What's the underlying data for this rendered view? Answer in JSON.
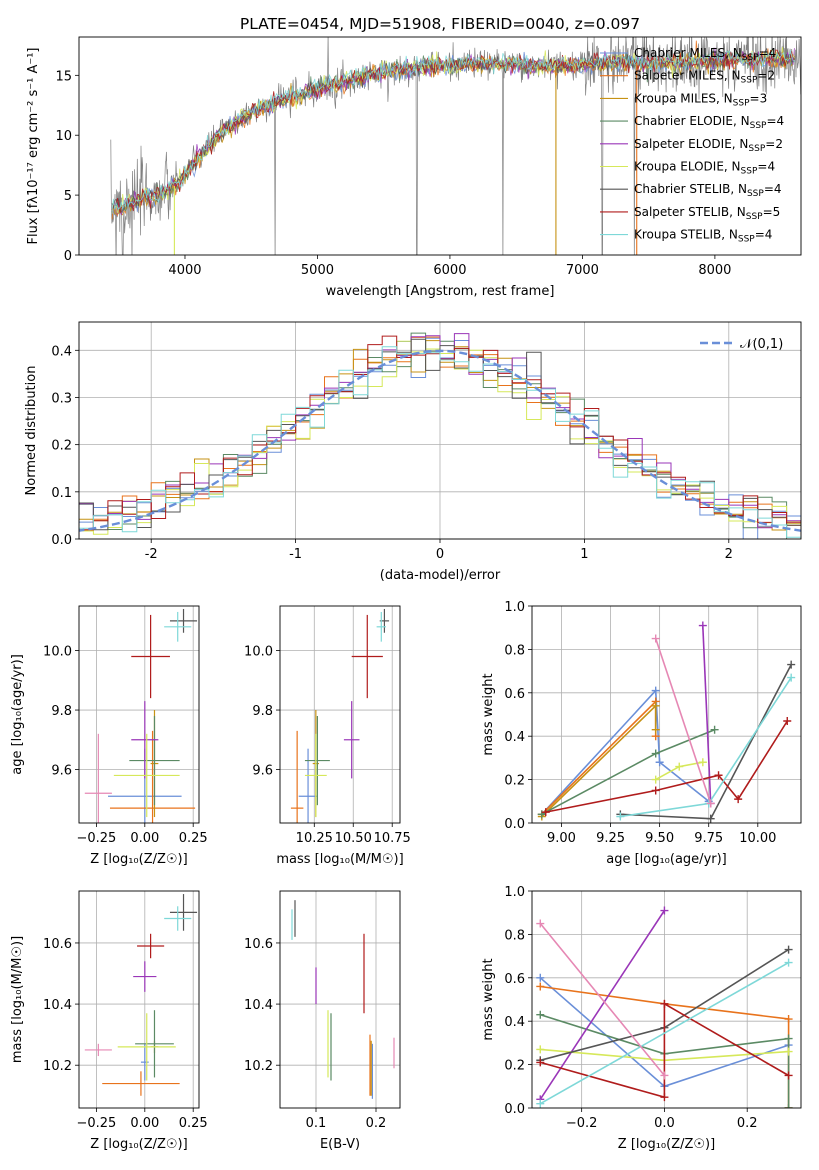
{
  "chart_data": [
    {
      "type": "line",
      "panel": "spectrum",
      "title": "PLATE=0454, MJD=51908, FIBERID=0040, z=0.097",
      "xlabel": "wavelength [Angstrom, rest frame]",
      "ylabel": "Flux [fλ10⁻¹⁷ erg cm⁻² s⁻¹ A⁻¹]",
      "xlim": [
        3200,
        8650
      ],
      "ylim": [
        0,
        18.2
      ],
      "xticks": [
        4000,
        5000,
        6000,
        7000,
        8000
      ],
      "yticks": [
        0,
        5,
        10,
        15
      ],
      "grid": false,
      "legend_position": "right",
      "series": [
        {
          "name": "Chabrier MILES, N",
          "sub": "SSP",
          "tail": "=4",
          "color": "#6a8fd8"
        },
        {
          "name": "Salpeter MILES, N",
          "sub": "SSP",
          "tail": "=2",
          "color": "#e8731c"
        },
        {
          "name": "Kroupa MILES, N",
          "sub": "SSP",
          "tail": "=3",
          "color": "#c69214"
        },
        {
          "name": "Chabrier ELODIE, N",
          "sub": "SSP",
          "tail": "=4",
          "color": "#5b8a64"
        },
        {
          "name": "Salpeter ELODIE, N",
          "sub": "SSP",
          "tail": "=2",
          "color": "#9a36b8"
        },
        {
          "name": "Kroupa ELODIE, N",
          "sub": "SSP",
          "tail": "=4",
          "color": "#d6e85a"
        },
        {
          "name": "Chabrier STELIB, N",
          "sub": "SSP",
          "tail": "=4",
          "color": "#555555"
        },
        {
          "name": "Salpeter STELIB, N",
          "sub": "SSP",
          "tail": "=5",
          "color": "#b01c1c"
        },
        {
          "name": "Kroupa STELIB, N",
          "sub": "SSP",
          "tail": "=4",
          "color": "#7ed8d8"
        }
      ],
      "continuum": {
        "x": [
          3450,
          3550,
          3700,
          3850,
          3950,
          4100,
          4300,
          4500,
          4700,
          4900,
          5100,
          5300,
          5500,
          5700,
          5900,
          6100,
          6300,
          6500,
          6700,
          6900,
          7100,
          7300,
          7500,
          7700,
          7900,
          8100,
          8300,
          8500,
          8650
        ],
        "y": [
          3.8,
          4.2,
          4.9,
          5.2,
          6.0,
          8.2,
          10.4,
          11.9,
          12.8,
          13.5,
          14.2,
          14.8,
          15.3,
          15.6,
          15.8,
          15.9,
          16.0,
          15.9,
          15.8,
          15.8,
          16.0,
          16.1,
          16.0,
          16.0,
          16.2,
          16.3,
          16.4,
          16.4,
          16.3
        ]
      },
      "observed_spikes": [
        3480,
        3530,
        3600,
        4680,
        5080,
        5750,
        6400,
        7150,
        7390
      ],
      "model_dips": [
        3920,
        6800,
        7410
      ]
    },
    {
      "type": "histogram",
      "panel": "residuals",
      "xlabel": "(data-model)/error",
      "ylabel": "Normed distribution",
      "xlim": [
        -2.5,
        2.5
      ],
      "ylim": [
        0,
        0.46
      ],
      "xticks": [
        -2,
        -1,
        0,
        1,
        2
      ],
      "yticks": [
        0.0,
        0.1,
        0.2,
        0.3,
        0.4
      ],
      "grid": true,
      "legend_position": "top-right",
      "reference_curve": {
        "label": "𝒩(0,1)",
        "mean": 0,
        "sigma": 1,
        "color": "#6a8fd8",
        "style": "dashed"
      },
      "bin_width": 0.1
    },
    {
      "type": "scatter",
      "panel": "Z-age",
      "xlabel": "Z [log₁₀(Z/Z☉)]",
      "ylabel": "age  [log₁₀(age/yr)]",
      "xlim": [
        -0.34,
        0.28
      ],
      "ylim": [
        9.42,
        10.15
      ],
      "xticks": [
        -0.25,
        0.0,
        0.25
      ],
      "xticklabels": [
        "−0.25",
        "0.00",
        "0.25"
      ],
      "yticks": [
        9.6,
        9.8,
        10.0
      ],
      "grid": true,
      "points": [
        {
          "x": 0.0,
          "y": 9.51,
          "xerr": 0.19,
          "yerr": 0.16,
          "color": "#6a8fd8"
        },
        {
          "x": 0.04,
          "y": 9.47,
          "xerr": 0.22,
          "yerr": 0.26,
          "color": "#e8731c"
        },
        {
          "x": 0.05,
          "y": 9.62,
          "xerr": 0.02,
          "yerr": 0.18,
          "color": "#c69214"
        },
        {
          "x": 0.05,
          "y": 9.63,
          "xerr": 0.13,
          "yerr": 0.15,
          "color": "#5b8a64"
        },
        {
          "x": 0.0,
          "y": 9.7,
          "xerr": 0.07,
          "yerr": 0.13,
          "color": "#9a36b8"
        },
        {
          "x": 0.01,
          "y": 9.58,
          "xerr": 0.17,
          "yerr": 0.14,
          "color": "#d6e85a"
        },
        {
          "x": 0.2,
          "y": 10.1,
          "xerr": 0.07,
          "yerr": 0.04,
          "color": "#555555"
        },
        {
          "x": 0.03,
          "y": 9.98,
          "xerr": 0.1,
          "yerr": 0.14,
          "color": "#b01c1c"
        },
        {
          "x": 0.17,
          "y": 10.08,
          "xerr": 0.07,
          "yerr": 0.05,
          "color": "#7ed8d8"
        },
        {
          "x": -0.24,
          "y": 9.52,
          "xerr": 0.07,
          "yerr": 0.2,
          "color": "#e688b4"
        }
      ]
    },
    {
      "type": "scatter",
      "panel": "mass-age",
      "xlabel": "mass [log₁₀(M/M☉)]",
      "xlim": [
        10.03,
        10.8
      ],
      "ylim": [
        9.42,
        10.15
      ],
      "xticks": [
        10.25,
        10.5,
        10.75
      ],
      "xticklabels": [
        "10.25",
        "10.50",
        "10.75"
      ],
      "yticks": [
        9.6,
        9.8,
        10.0
      ],
      "grid": true,
      "points": [
        {
          "x": 10.21,
          "y": 9.51,
          "xerr": 0.06,
          "yerr": 0.16,
          "color": "#6a8fd8"
        },
        {
          "x": 10.14,
          "y": 9.47,
          "xerr": 0.04,
          "yerr": 0.26,
          "color": "#e8731c"
        },
        {
          "x": 10.26,
          "y": 9.62,
          "xerr": 0.02,
          "yerr": 0.18,
          "color": "#c69214"
        },
        {
          "x": 10.27,
          "y": 9.63,
          "xerr": 0.08,
          "yerr": 0.15,
          "color": "#5b8a64"
        },
        {
          "x": 10.49,
          "y": 9.7,
          "xerr": 0.05,
          "yerr": 0.13,
          "color": "#9a36b8"
        },
        {
          "x": 10.26,
          "y": 9.58,
          "xerr": 0.07,
          "yerr": 0.14,
          "color": "#d6e85a"
        },
        {
          "x": 10.7,
          "y": 10.1,
          "xerr": 0.03,
          "yerr": 0.04,
          "color": "#555555"
        },
        {
          "x": 10.59,
          "y": 9.98,
          "xerr": 0.1,
          "yerr": 0.14,
          "color": "#b01c1c"
        },
        {
          "x": 10.68,
          "y": 10.08,
          "xerr": 0.03,
          "yerr": 0.05,
          "color": "#7ed8d8"
        }
      ]
    },
    {
      "type": "line",
      "panel": "age-weight",
      "xlabel": "age  [log₁₀(age/yr)]",
      "ylabel": "mass weight",
      "xlim": [
        8.85,
        10.22
      ],
      "ylim": [
        0,
        1.0
      ],
      "xticks": [
        9.0,
        9.25,
        9.5,
        9.75,
        10.0
      ],
      "xticklabels": [
        "9.00",
        "9.25",
        "9.50",
        "9.75",
        "10.00"
      ],
      "yticks": [
        0.0,
        0.2,
        0.4,
        0.6,
        0.8,
        1.0
      ],
      "grid": true,
      "series": [
        {
          "color": "#6a8fd8",
          "x": [
            8.9,
            9.48,
            9.5,
            9.75
          ],
          "y": [
            0.04,
            0.61,
            0.28,
            0.1
          ]
        },
        {
          "color": "#e8731c",
          "x": [
            8.9,
            9.48,
            9.48
          ],
          "y": [
            0.04,
            0.56,
            0.4
          ]
        },
        {
          "color": "#c69214",
          "x": [
            8.9,
            9.48,
            9.48
          ],
          "y": [
            0.03,
            0.54,
            0.43
          ]
        },
        {
          "color": "#5b8a64",
          "x": [
            8.9,
            9.48,
            9.78
          ],
          "y": [
            0.04,
            0.32,
            0.43
          ]
        },
        {
          "color": "#9a36b8",
          "x": [
            9.72,
            9.76
          ],
          "y": [
            0.91,
            0.09
          ]
        },
        {
          "color": "#d6e85a",
          "x": [
            9.48,
            9.6,
            9.72
          ],
          "y": [
            0.2,
            0.26,
            0.28
          ]
        },
        {
          "color": "#555555",
          "x": [
            9.3,
            9.76,
            10.17
          ],
          "y": [
            0.04,
            0.02,
            0.73
          ]
        },
        {
          "color": "#b01c1c",
          "x": [
            8.92,
            9.48,
            9.8,
            9.9,
            10.15
          ],
          "y": [
            0.05,
            0.15,
            0.22,
            0.11,
            0.47
          ]
        },
        {
          "color": "#7ed8d8",
          "x": [
            9.3,
            9.75,
            10.17
          ],
          "y": [
            0.03,
            0.09,
            0.67
          ]
        },
        {
          "color": "#e688b4",
          "x": [
            9.48,
            9.76
          ],
          "y": [
            0.85,
            0.09
          ]
        }
      ]
    },
    {
      "type": "scatter",
      "panel": "Z-mass",
      "xlabel": "Z [log₁₀(Z/Z☉)]",
      "ylabel": "mass [log₁₀(M/M☉)]",
      "xlim": [
        -0.34,
        0.28
      ],
      "ylim": [
        10.06,
        10.77
      ],
      "xticks": [
        -0.25,
        0.0,
        0.25
      ],
      "xticklabels": [
        "−0.25",
        "0.00",
        "0.25"
      ],
      "yticks": [
        10.2,
        10.4,
        10.6
      ],
      "grid": true,
      "points": [
        {
          "x": 0.0,
          "y": 10.21,
          "xerr": 0.02,
          "yerr": 0.06,
          "color": "#6a8fd8"
        },
        {
          "x": -0.02,
          "y": 10.14,
          "xerr": 0.2,
          "yerr": 0.04,
          "color": "#e8731c"
        },
        {
          "x": 0.05,
          "y": 10.26,
          "xerr": 0.02,
          "yerr": 0.02,
          "color": "#c69214"
        },
        {
          "x": 0.05,
          "y": 10.27,
          "xerr": 0.1,
          "yerr": 0.11,
          "color": "#5b8a64"
        },
        {
          "x": 0.0,
          "y": 10.49,
          "xerr": 0.06,
          "yerr": 0.05,
          "color": "#9a36b8"
        },
        {
          "x": 0.01,
          "y": 10.26,
          "xerr": 0.15,
          "yerr": 0.11,
          "color": "#d6e85a"
        },
        {
          "x": 0.2,
          "y": 10.7,
          "xerr": 0.07,
          "yerr": 0.06,
          "color": "#555555"
        },
        {
          "x": 0.03,
          "y": 10.59,
          "xerr": 0.07,
          "yerr": 0.04,
          "color": "#b01c1c"
        },
        {
          "x": 0.17,
          "y": 10.68,
          "xerr": 0.07,
          "yerr": 0.04,
          "color": "#7ed8d8"
        },
        {
          "x": -0.24,
          "y": 10.25,
          "xerr": 0.07,
          "yerr": 0.02,
          "color": "#e688b4"
        }
      ]
    },
    {
      "type": "scatter",
      "panel": "EBV-mass",
      "xlabel": "E(B-V)",
      "xlim": [
        0.04,
        0.24
      ],
      "ylim": [
        10.06,
        10.77
      ],
      "xticks": [
        0.1,
        0.2
      ],
      "xticklabels": [
        "0.1",
        "0.2"
      ],
      "yticks": [
        10.2,
        10.4,
        10.6
      ],
      "grid": true,
      "points": [
        {
          "x": 0.194,
          "y": 10.18,
          "yerr": 0.09,
          "color": "#6a8fd8"
        },
        {
          "x": 0.19,
          "y": 10.2,
          "yerr": 0.1,
          "color": "#e8731c"
        },
        {
          "x": 0.192,
          "y": 10.19,
          "yerr": 0.09,
          "color": "#c69214"
        },
        {
          "x": 0.125,
          "y": 10.26,
          "yerr": 0.11,
          "color": "#5b8a64"
        },
        {
          "x": 0.1,
          "y": 10.46,
          "yerr": 0.06,
          "color": "#9a36b8"
        },
        {
          "x": 0.12,
          "y": 10.27,
          "yerr": 0.11,
          "color": "#d6e85a"
        },
        {
          "x": 0.065,
          "y": 10.68,
          "yerr": 0.06,
          "color": "#555555"
        },
        {
          "x": 0.18,
          "y": 10.5,
          "yerr": 0.13,
          "color": "#b01c1c"
        },
        {
          "x": 0.06,
          "y": 10.66,
          "yerr": 0.05,
          "color": "#7ed8d8"
        },
        {
          "x": 0.23,
          "y": 10.24,
          "yerr": 0.05,
          "color": "#e688b4"
        }
      ]
    },
    {
      "type": "line",
      "panel": "Z-weight",
      "xlabel": "Z [log₁₀(Z/Z☉)]",
      "ylabel": "mass weight",
      "xlim": [
        -0.32,
        0.33
      ],
      "ylim": [
        0,
        1.0
      ],
      "xticks": [
        -0.2,
        0.0,
        0.2
      ],
      "xticklabels": [
        "−0.2",
        "0.0",
        "0.2"
      ],
      "yticks": [
        0.0,
        0.2,
        0.4,
        0.6,
        0.8,
        1.0
      ],
      "grid": true,
      "series": [
        {
          "color": "#6a8fd8",
          "x": [
            -0.3,
            0.0,
            0.3
          ],
          "y": [
            0.6,
            0.1,
            0.29
          ]
        },
        {
          "color": "#e8731c",
          "x": [
            -0.3,
            0.0,
            0.3,
            0.3
          ],
          "y": [
            0.56,
            0.48,
            0.41,
            0.0
          ]
        },
        {
          "color": "#5b8a64",
          "x": [
            -0.3,
            0.0,
            0.3,
            0.3
          ],
          "y": [
            0.43,
            0.25,
            0.32,
            0.0
          ]
        },
        {
          "color": "#9a36b8",
          "x": [
            -0.3,
            0.0
          ],
          "y": [
            0.04,
            0.91
          ]
        },
        {
          "color": "#d6e85a",
          "x": [
            -0.3,
            0.0,
            0.3
          ],
          "y": [
            0.27,
            0.22,
            0.26
          ]
        },
        {
          "color": "#555555",
          "x": [
            -0.3,
            0.0,
            0.3
          ],
          "y": [
            0.22,
            0.37,
            0.73
          ]
        },
        {
          "color": "#b01c1c",
          "x": [
            -0.3,
            0.0,
            0.0,
            0.3
          ],
          "y": [
            0.21,
            0.05,
            0.48,
            0.15
          ]
        },
        {
          "color": "#7ed8d8",
          "x": [
            -0.3,
            0.3
          ],
          "y": [
            0.02,
            0.67
          ]
        },
        {
          "color": "#e688b4",
          "x": [
            -0.3,
            0.0
          ],
          "y": [
            0.85,
            0.15
          ]
        }
      ]
    }
  ]
}
